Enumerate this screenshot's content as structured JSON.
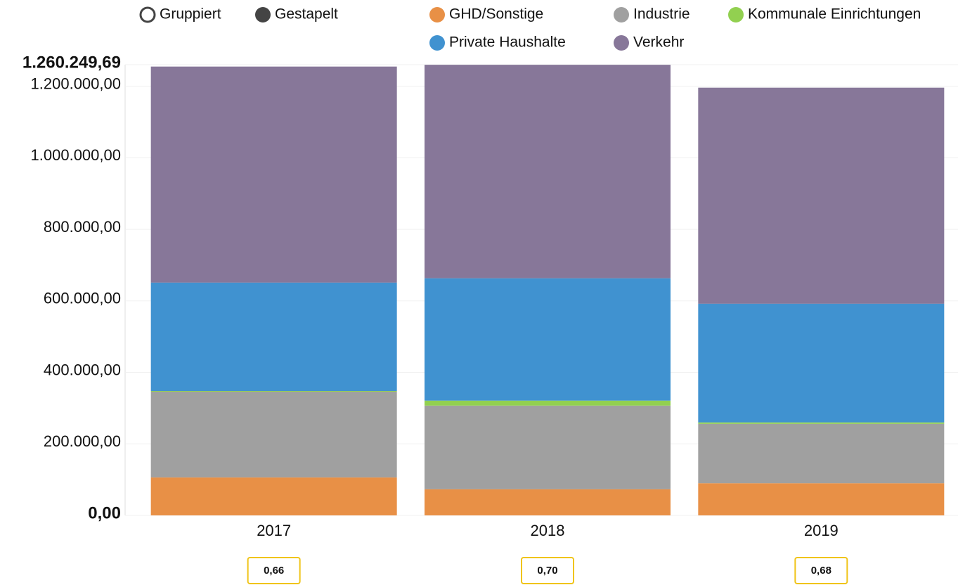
{
  "chart_data": {
    "type": "stacked_bar",
    "modes": [
      "Gruppiert",
      "Gestapelt"
    ],
    "categories": [
      "2017",
      "2018",
      "2019"
    ],
    "series": [
      {
        "name": "GHD/Sonstige",
        "color": "#e89046",
        "values": [
          106000,
          73000,
          90000
        ]
      },
      {
        "name": "Industrie",
        "color": "#a0a0a0",
        "values": [
          240000,
          234000,
          166000
        ]
      },
      {
        "name": "Kommunale Einrichtungen",
        "color": "#92d050",
        "values": [
          2000,
          14000,
          4000
        ]
      },
      {
        "name": "Private Haushalte",
        "color": "#4092d0",
        "values": [
          303000,
          342000,
          332000
        ]
      },
      {
        "name": "Verkehr",
        "color": "#877799",
        "values": [
          604000,
          597000,
          604000
        ]
      }
    ],
    "ylim": [
      0,
      1260249.69
    ],
    "yticks": [
      {
        "value": 0,
        "label": "0,00"
      },
      {
        "value": 200000,
        "label": "200.000,00"
      },
      {
        "value": 400000,
        "label": "400.000,00"
      },
      {
        "value": 600000,
        "label": "600.000,00"
      },
      {
        "value": 800000,
        "label": "800.000,00"
      },
      {
        "value": 1000000,
        "label": "1.000.000,00"
      },
      {
        "value": 1200000,
        "label": "1.200.000,00"
      },
      {
        "value": 1260249.69,
        "label": "1.260.249,69"
      }
    ],
    "grid": true,
    "indicators": [
      "0,66",
      "0,70",
      "0,68"
    ]
  }
}
